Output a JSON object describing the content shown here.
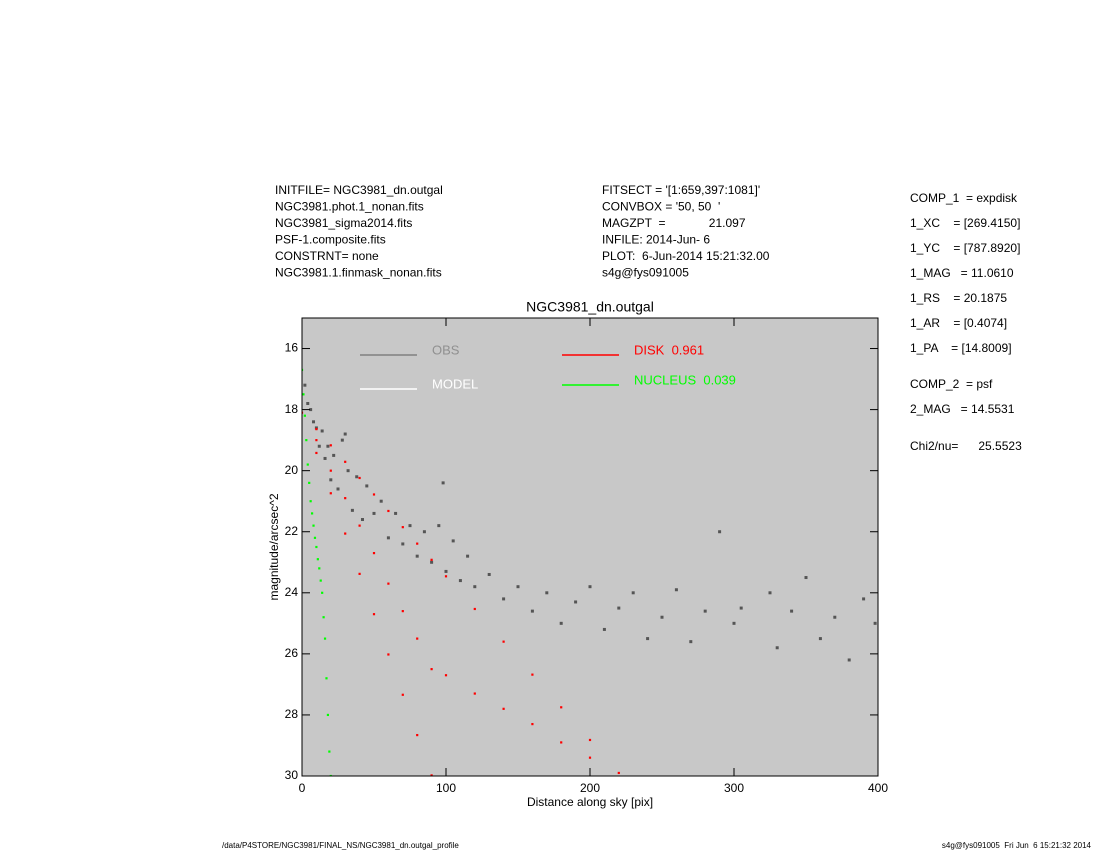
{
  "header": {
    "left": [
      "INITFILE= NGC3981_dn.outgal",
      "NGC3981.phot.1_nonan.fits",
      "NGC3981_sigma2014.fits",
      "PSF-1.composite.fits",
      "CONSTRNT= none",
      "NGC3981.1.finmask_nonan.fits"
    ],
    "middle": [
      "FITSECT = '[1:659,397:1081]'",
      "CONVBOX = '50, 50  '",
      "MAGZPT  =             21.097",
      "INFILE: 2014-Jun- 6",
      "PLOT:  6-Jun-2014 15:21:32.00",
      "s4g@fys091005"
    ]
  },
  "components": {
    "comp1": [
      "COMP_1  = expdisk",
      "1_XC    = [269.4150]",
      "1_YC    = [787.8920]",
      "1_MAG   = 11.0610",
      "1_RS    = 20.1875",
      "1_AR    = [0.4074]",
      "1_PA    = [14.8009]"
    ],
    "comp2": [
      "COMP_2  = psf",
      "2_MAG   = 14.5531"
    ],
    "chi": "Chi2/nu=      25.5523"
  },
  "footer": {
    "left": "/data/P4STORE/NGC3981/FINAL_NS/NGC3981_dn.outgal_profile",
    "right": "s4g@fys091005  Fri Jun  6 15:21:32 2014"
  },
  "chart_data": {
    "type": "scatter",
    "title": "NGC3981_dn.outgal",
    "x_label": "Distance along sky [pix]",
    "y_label": "magnitude/arcsec^2",
    "xlim": [
      0,
      400
    ],
    "ylim": [
      30,
      15
    ],
    "xticks": [
      0,
      100,
      200,
      300,
      400
    ],
    "yticks": [
      16,
      18,
      20,
      22,
      24,
      26,
      28,
      30
    ],
    "background": "#c8c8c8",
    "series": [
      {
        "name": "OBS",
        "color": "#555555",
        "x": [
          2,
          4,
          6,
          8,
          10,
          12,
          14,
          16,
          18,
          20,
          22,
          25,
          28,
          30,
          32,
          35,
          38,
          42,
          45,
          50,
          55,
          60,
          65,
          70,
          75,
          80,
          85,
          90,
          95,
          98,
          100,
          105,
          110,
          115,
          120,
          130,
          140,
          150,
          160,
          170,
          180,
          190,
          200,
          210,
          220,
          230,
          240,
          250,
          260,
          270,
          280,
          290,
          300,
          305,
          325,
          330,
          340,
          350,
          360,
          370,
          380,
          390,
          398
        ],
        "y": [
          17.2,
          17.8,
          18.0,
          18.4,
          18.6,
          19.2,
          18.7,
          19.6,
          19.2,
          20.3,
          19.5,
          20.6,
          19.0,
          18.8,
          20.0,
          21.3,
          20.2,
          21.6,
          20.5,
          21.4,
          21.0,
          22.2,
          21.4,
          22.4,
          21.8,
          22.8,
          22.0,
          23.0,
          21.8,
          20.4,
          23.3,
          22.3,
          23.6,
          22.8,
          23.8,
          23.4,
          24.2,
          23.8,
          24.6,
          24.0,
          25.0,
          24.3,
          23.8,
          25.2,
          24.5,
          24.0,
          25.5,
          24.8,
          23.9,
          25.6,
          24.6,
          22.0,
          25.0,
          24.5,
          24.0,
          25.8,
          24.6,
          23.5,
          25.5,
          24.8,
          26.2,
          24.2,
          25.0
        ]
      },
      {
        "name": "MODEL",
        "color": "#ffffff",
        "x": [],
        "y": []
      },
      {
        "name": "DISK  0.961",
        "color": "#ff0000",
        "x": [
          0,
          10,
          10,
          10,
          20,
          20,
          20,
          30,
          30,
          30,
          40,
          40,
          40,
          50,
          50,
          50,
          60,
          60,
          60,
          70,
          70,
          70,
          80,
          80,
          80,
          90,
          90,
          90,
          100,
          100,
          120,
          120,
          140,
          140,
          160,
          160,
          180,
          180,
          200,
          200,
          220
        ],
        "y": [
          18.1,
          18.64,
          19.0,
          19.42,
          19.17,
          20.0,
          20.74,
          19.71,
          20.9,
          22.06,
          20.24,
          21.8,
          23.38,
          20.78,
          22.7,
          24.7,
          21.32,
          23.7,
          26.02,
          21.85,
          24.6,
          27.34,
          22.39,
          25.5,
          28.66,
          22.92,
          26.5,
          29.98,
          23.46,
          26.7,
          24.53,
          27.3,
          25.6,
          27.8,
          26.68,
          28.3,
          27.75,
          28.9,
          28.82,
          29.4,
          29.9
        ]
      },
      {
        "name": "NUCLEUS  0.039",
        "color": "#00ff00",
        "x": [
          0,
          1,
          2,
          3,
          4,
          5,
          6,
          7,
          8,
          9,
          10,
          11,
          12,
          13,
          14,
          15,
          16,
          17,
          18,
          19,
          20
        ],
        "y": [
          16.7,
          17.5,
          18.2,
          19.0,
          19.8,
          20.4,
          21.0,
          21.4,
          21.8,
          22.2,
          22.5,
          22.9,
          23.2,
          23.6,
          24.0,
          24.8,
          25.5,
          26.8,
          28.0,
          29.2,
          30.0
        ]
      }
    ]
  }
}
